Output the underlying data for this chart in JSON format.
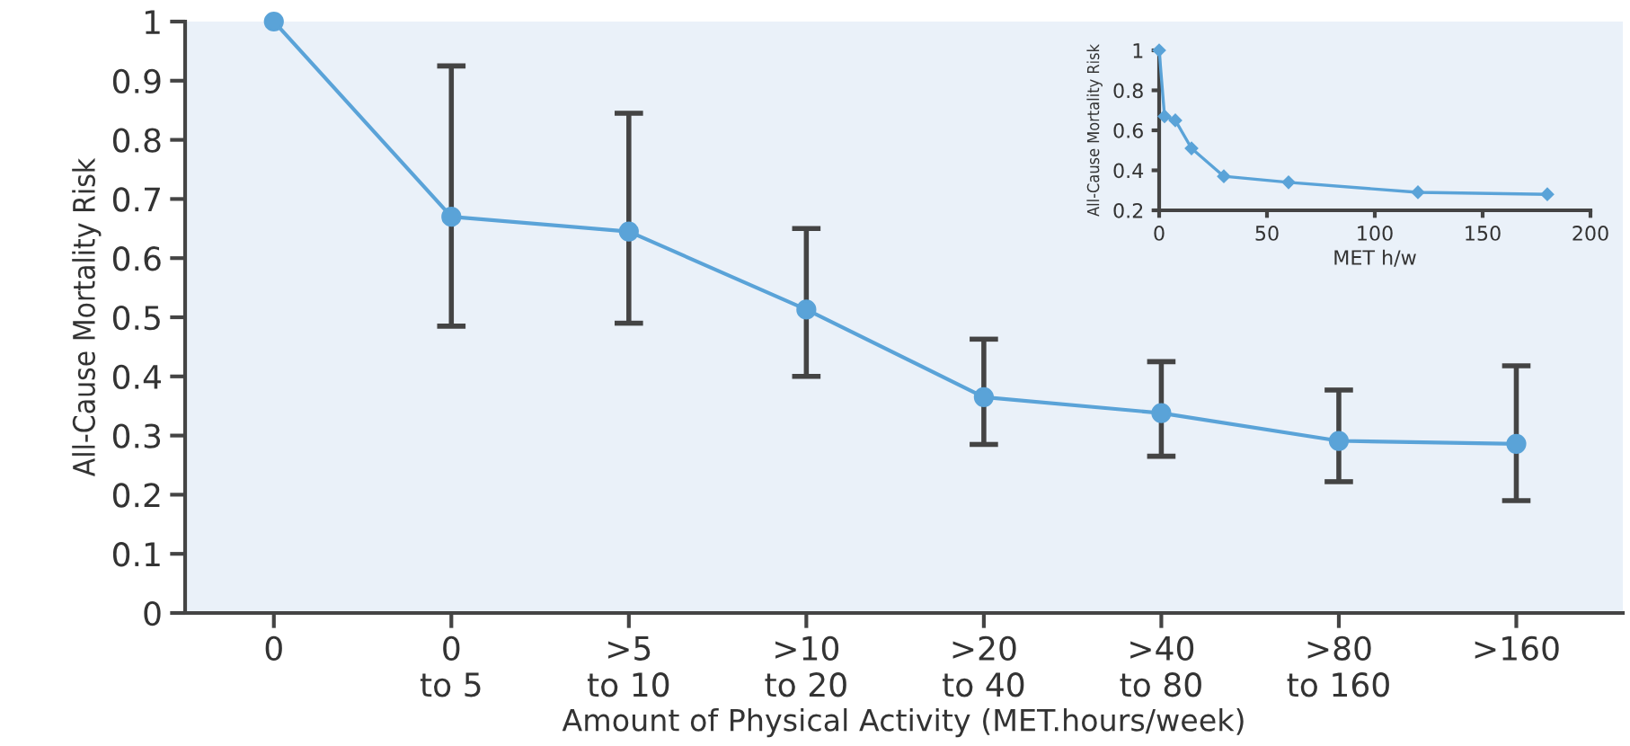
{
  "chart_data": [
    {
      "type": "line",
      "xlabel": "Amount of Physical Activity (MET.hours/week)",
      "ylabel": "All-Cause Mortality Risk",
      "categories": [
        "0",
        "0\nto 5",
        ">5\nto 10",
        ">10\nto 20",
        ">20\nto 40",
        ">40\nto 80",
        ">80\nto 160",
        ">160"
      ],
      "series": [
        {
          "color": "#5aa3d8",
          "values": [
            1,
            0.67,
            0.645,
            0.513,
            0.365,
            0.338,
            0.291,
            0.286
          ],
          "errors": [
            null,
            [
              0.485,
              0.925
            ],
            [
              0.49,
              0.845
            ],
            [
              0.4,
              0.65
            ],
            [
              0.285,
              0.463
            ],
            [
              0.265,
              0.425
            ],
            [
              0.222,
              0.377
            ],
            [
              0.19,
              0.418
            ]
          ]
        }
      ],
      "ylim": [
        0,
        1
      ],
      "yticks": [
        0,
        0.1,
        0.2,
        0.3,
        0.4,
        0.5,
        0.6,
        0.7,
        0.8,
        0.9,
        1
      ],
      "marker": "circle",
      "grid": false,
      "legend": false
    },
    {
      "type": "line",
      "xlabel": "MET h/w",
      "ylabel": "All-Cause Mortality Risk",
      "x": [
        0,
        2.5,
        7.5,
        15,
        30,
        60,
        120,
        180
      ],
      "series": [
        {
          "color": "#5aa3d8",
          "values": [
            1,
            0.67,
            0.65,
            0.51,
            0.37,
            0.34,
            0.29,
            0.28
          ]
        }
      ],
      "xlim": [
        0,
        200
      ],
      "xticks": [
        0,
        50,
        100,
        150,
        200
      ],
      "ylim": [
        0.2,
        1
      ],
      "yticks": [
        0.2,
        0.4,
        0.6,
        0.8,
        1
      ],
      "marker": "diamond",
      "grid": false,
      "legend": false
    }
  ]
}
